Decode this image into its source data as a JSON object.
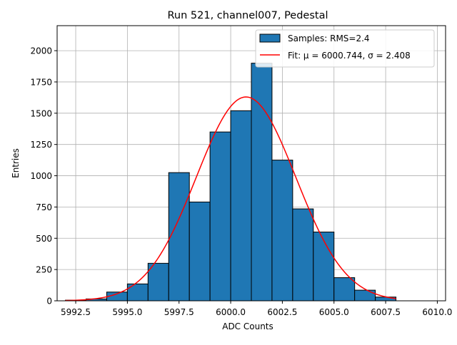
{
  "chart_data": {
    "type": "bar",
    "title": "Run 521, channel007, Pedestal",
    "xlabel": "ADC Counts",
    "ylabel": "Entries",
    "xlim": [
      5991.6,
      6010.4
    ],
    "ylim": [
      0,
      2200
    ],
    "xticks": [
      5992.5,
      5995.0,
      5997.5,
      6000.0,
      6002.5,
      6005.0,
      6007.5,
      6010.0
    ],
    "xtick_labels": [
      "5992.5",
      "5995.0",
      "5997.5",
      "6000.0",
      "6002.5",
      "6005.0",
      "6007.5",
      "6010.0"
    ],
    "yticks": [
      0,
      250,
      500,
      750,
      1000,
      1250,
      1500,
      1750,
      2000
    ],
    "ytick_labels": [
      "0",
      "250",
      "500",
      "750",
      "1000",
      "1250",
      "1500",
      "1750",
      "2000"
    ],
    "grid": true,
    "legend_position": "top-right",
    "bins": [
      {
        "x0": 5992,
        "x1": 5993,
        "value": 5
      },
      {
        "x0": 5993,
        "x1": 5994,
        "value": 15
      },
      {
        "x0": 5994,
        "x1": 5995,
        "value": 70
      },
      {
        "x0": 5995,
        "x1": 5996,
        "value": 135
      },
      {
        "x0": 5996,
        "x1": 5997,
        "value": 300
      },
      {
        "x0": 5997,
        "x1": 5998,
        "value": 1025
      },
      {
        "x0": 5998,
        "x1": 5999,
        "value": 790
      },
      {
        "x0": 5999,
        "x1": 6000,
        "value": 1350
      },
      {
        "x0": 6000,
        "x1": 6001,
        "value": 1520
      },
      {
        "x0": 6001,
        "x1": 6002,
        "value": 1900
      },
      {
        "x0": 6002,
        "x1": 6003,
        "value": 1125
      },
      {
        "x0": 6003,
        "x1": 6004,
        "value": 735
      },
      {
        "x0": 6004,
        "x1": 6005,
        "value": 550
      },
      {
        "x0": 6005,
        "x1": 6006,
        "value": 185
      },
      {
        "x0": 6006,
        "x1": 6007,
        "value": 85
      },
      {
        "x0": 6007,
        "x1": 6008,
        "value": 30
      }
    ],
    "fit": {
      "mu": 6000.744,
      "sigma": 2.408,
      "amplitude": 1630,
      "x_range": [
        5992,
        6008
      ]
    },
    "series": [
      {
        "name": "Samples: RMS=2.4",
        "kind": "histogram",
        "color": "#1f77b4"
      },
      {
        "name": "Fit: μ = 6000.744, σ = 2.408",
        "kind": "line",
        "color": "#ff0000"
      }
    ]
  }
}
